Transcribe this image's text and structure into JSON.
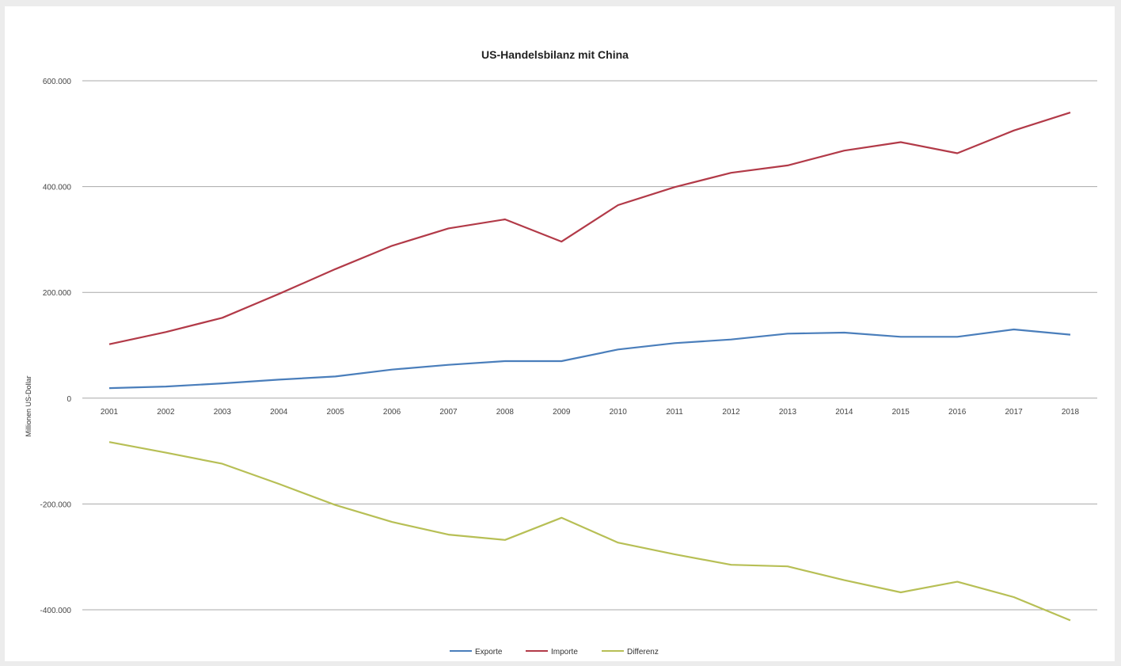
{
  "chart_data": {
    "type": "line",
    "title": "US-Handelsbilanz mit China",
    "xlabel": "",
    "ylabel": "Millionen US-Dollar",
    "ylim": [
      -400000,
      600000
    ],
    "yticks": [
      -400000,
      -200000,
      0,
      200000,
      400000,
      600000
    ],
    "ytick_labels": [
      "-400.000",
      "-200.000",
      "0",
      "200.000",
      "400.000",
      "600.000"
    ],
    "grid": true,
    "legend_position": "bottom",
    "categories": [
      "2001",
      "2002",
      "2003",
      "2004",
      "2005",
      "2006",
      "2007",
      "2008",
      "2009",
      "2010",
      "2011",
      "2012",
      "2013",
      "2014",
      "2015",
      "2016",
      "2017",
      "2018"
    ],
    "series": [
      {
        "name": "Exporte",
        "color": "#4a7ebb",
        "values": [
          19000,
          22000,
          28000,
          35000,
          41000,
          54000,
          63000,
          70000,
          70000,
          92000,
          104000,
          111000,
          122000,
          124000,
          116000,
          116000,
          130000,
          120000
        ]
      },
      {
        "name": "Importe",
        "color": "#b23a48",
        "values": [
          102000,
          125000,
          152000,
          197000,
          244000,
          288000,
          321000,
          338000,
          296000,
          365000,
          399000,
          426000,
          440000,
          468000,
          484000,
          463000,
          506000,
          540000
        ]
      },
      {
        "name": "Differenz",
        "color": "#b7bf55",
        "values": [
          -83000,
          -103000,
          -124000,
          -162000,
          -202000,
          -234000,
          -258000,
          -268000,
          -226000,
          -273000,
          -295000,
          -315000,
          -318000,
          -344000,
          -367000,
          -347000,
          -376000,
          -420000
        ]
      }
    ]
  }
}
